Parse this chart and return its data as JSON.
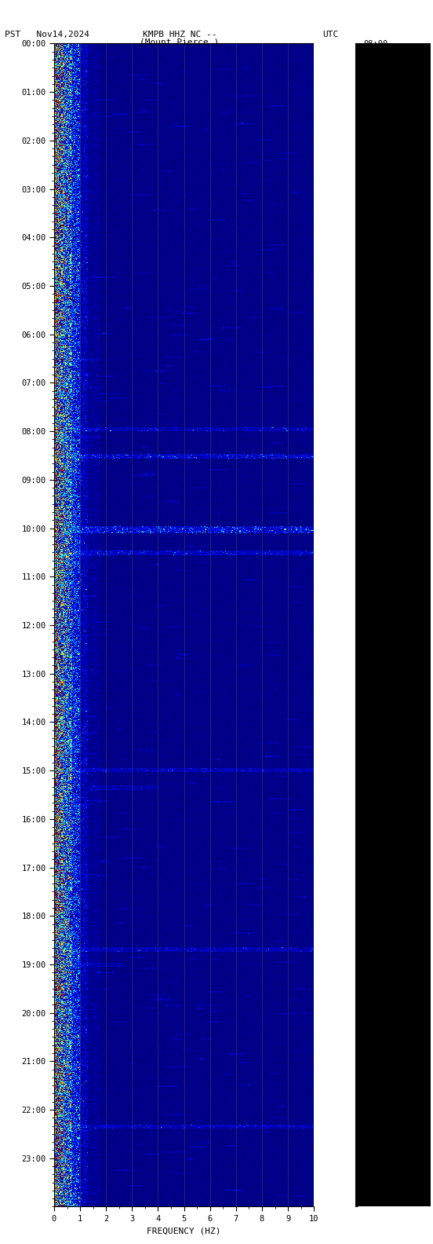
{
  "title_line1": "KMPB HHZ NC --",
  "title_line2": "(Mount Pierce )",
  "left_label": "PST   Nov14,2024",
  "right_label": "UTC",
  "xlabel": "FREQUENCY (HZ)",
  "freq_min": 0,
  "freq_max": 10,
  "freq_ticks": [
    0,
    1,
    2,
    3,
    4,
    5,
    6,
    7,
    8,
    9,
    10
  ],
  "fig_width": 5.52,
  "fig_height": 15.84,
  "fig_bg_color": "#ffffff",
  "right_panel_color": "#000000",
  "colormap": "jet",
  "title_fontsize": 8,
  "tick_fontsize": 7.5,
  "label_fontsize": 8
}
